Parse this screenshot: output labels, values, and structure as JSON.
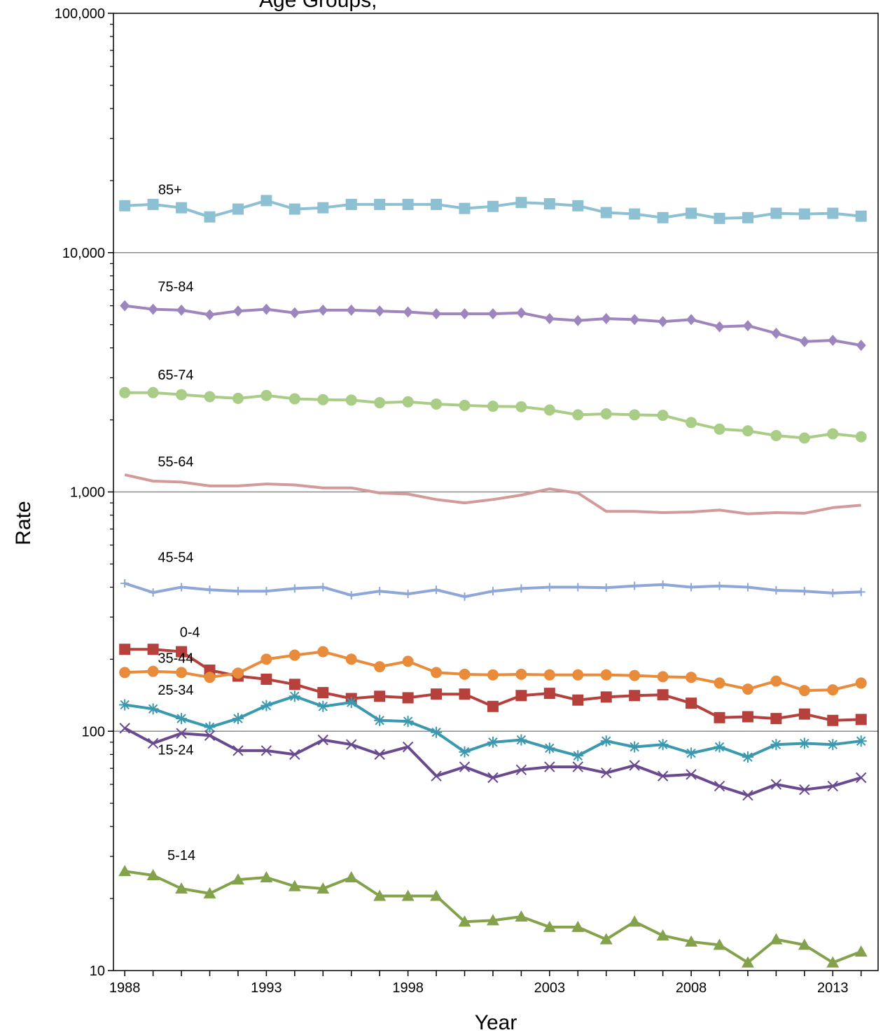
{
  "chart_data": {
    "type": "line",
    "title": "Age Groups,",
    "xlabel": "Year",
    "ylabel": "Rate",
    "x": [
      1988,
      1989,
      1990,
      1991,
      1992,
      1993,
      1994,
      1995,
      1996,
      1997,
      1998,
      1999,
      2000,
      2001,
      2002,
      2003,
      2004,
      2005,
      2006,
      2007,
      2008,
      2009,
      2010,
      2011,
      2012,
      2013,
      2014
    ],
    "xlim": [
      1987.6,
      2014.6
    ],
    "ylim": [
      10,
      100000
    ],
    "y_scale": "log",
    "grid": "horizontal major gridlines",
    "x_tick_labels": [
      "1988",
      "1993",
      "1998",
      "2003",
      "2008",
      "2013"
    ],
    "x_tick_values": [
      1988,
      1993,
      1998,
      2003,
      2008,
      2013
    ],
    "y_tick_labels": [
      "10",
      "100",
      "1,000",
      "10,000",
      "100,000"
    ],
    "y_tick_values": [
      10,
      100,
      1000,
      10000,
      100000
    ],
    "series": [
      {
        "name": "85+",
        "color": "#8cc0d2",
        "marker": "square",
        "label_year": 1989.6,
        "label_value": 17500,
        "values": [
          15700,
          15900,
          15400,
          14100,
          15200,
          16500,
          15200,
          15400,
          15900,
          15900,
          15900,
          15900,
          15300,
          15600,
          16200,
          16000,
          15700,
          14700,
          14500,
          14000,
          14600,
          13900,
          14000,
          14600,
          14500,
          14600,
          14200
        ]
      },
      {
        "name": "75-84",
        "color": "#9d86bd",
        "marker": "diamond",
        "label_year": 1989.8,
        "label_value": 6900,
        "values": [
          6000,
          5800,
          5750,
          5500,
          5700,
          5800,
          5600,
          5750,
          5750,
          5700,
          5650,
          5550,
          5550,
          5550,
          5600,
          5300,
          5200,
          5300,
          5250,
          5150,
          5250,
          4900,
          4950,
          4600,
          4250,
          4300,
          4100
        ]
      },
      {
        "name": "65-74",
        "color": "#a9cc86",
        "marker": "circle",
        "label_year": 1989.8,
        "label_value": 2950,
        "values": [
          2600,
          2600,
          2550,
          2500,
          2460,
          2530,
          2450,
          2430,
          2420,
          2360,
          2380,
          2330,
          2300,
          2280,
          2270,
          2200,
          2100,
          2120,
          2100,
          2090,
          1950,
          1830,
          1800,
          1720,
          1680,
          1750,
          1700
        ]
      },
      {
        "name": "55-64",
        "color": "#d39a9a",
        "marker": "none",
        "label_year": 1989.8,
        "label_value": 1280,
        "values": [
          1180,
          1110,
          1100,
          1060,
          1060,
          1080,
          1070,
          1040,
          1040,
          990,
          980,
          930,
          900,
          930,
          970,
          1030,
          990,
          830,
          830,
          820,
          825,
          840,
          810,
          820,
          815,
          860,
          880
        ]
      },
      {
        "name": "45-54",
        "color": "#8ea6d8",
        "marker": "plus",
        "label_year": 1989.8,
        "label_value": 510,
        "values": [
          415,
          380,
          400,
          390,
          385,
          385,
          395,
          400,
          370,
          385,
          375,
          390,
          365,
          385,
          395,
          400,
          400,
          398,
          405,
          410,
          400,
          405,
          400,
          388,
          385,
          378,
          382
        ]
      },
      {
        "name": "0-4",
        "color": "#b5403c",
        "marker": "square",
        "label_year": 1990.3,
        "label_value": 248,
        "values": [
          220,
          220,
          215,
          180,
          170,
          165,
          157,
          145,
          137,
          140,
          138,
          143,
          143,
          127,
          141,
          144,
          135,
          139,
          141,
          142,
          131,
          114,
          115,
          113,
          118,
          111,
          112
        ]
      },
      {
        "name": "35-44",
        "color": "#e88b3b",
        "marker": "circle",
        "label_year": 1989.8,
        "label_value": 193,
        "values": [
          176,
          178,
          176,
          168,
          175,
          200,
          208,
          215,
          200,
          186,
          196,
          176,
          173,
          172,
          173,
          172,
          172,
          172,
          171,
          169,
          168,
          159,
          150,
          162,
          148,
          149,
          159
        ]
      },
      {
        "name": "25-34",
        "color": "#3a99ae",
        "marker": "asterisk",
        "label_year": 1989.8,
        "label_value": 142,
        "values": [
          129,
          124,
          113,
          104,
          113,
          128,
          140,
          127,
          132,
          111,
          110,
          99,
          82,
          90,
          92,
          85,
          79,
          91,
          86,
          88,
          81,
          86,
          78,
          88,
          89,
          88,
          91
        ]
      },
      {
        "name": "15-24",
        "color": "#6a4a8e",
        "marker": "x",
        "label_year": 1989.8,
        "label_value": 80,
        "values": [
          103,
          89,
          98,
          96,
          83,
          83,
          80,
          92,
          88,
          80,
          86,
          65,
          71,
          64,
          69,
          71,
          71,
          67,
          72,
          65,
          66,
          59,
          54,
          60,
          57,
          59,
          64
        ]
      },
      {
        "name": "5-14",
        "color": "#83a24b",
        "marker": "triangle",
        "label_year": 1990.0,
        "label_value": 29,
        "values": [
          26,
          25,
          22,
          21,
          24,
          24.5,
          22.5,
          22,
          24.5,
          20.5,
          20.5,
          20.5,
          16,
          16.2,
          16.8,
          15.2,
          15.2,
          13.5,
          16,
          14,
          13.2,
          12.8,
          10.8,
          13.5,
          12.8,
          10.8,
          12
        ]
      }
    ]
  }
}
